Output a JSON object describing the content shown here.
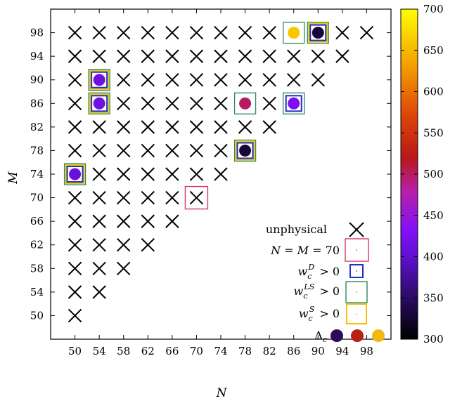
{
  "chart_data": {
    "type": "scatter",
    "xlabel": "N",
    "ylabel": "M",
    "xlim": [
      46,
      102
    ],
    "ylim": [
      46,
      102
    ],
    "x_ticks": [
      "50",
      "54",
      "58",
      "62",
      "66",
      "70",
      "74",
      "78",
      "82",
      "86",
      "90",
      "94",
      "98"
    ],
    "y_ticks": [
      "50",
      "54",
      "58",
      "62",
      "66",
      "70",
      "74",
      "78",
      "82",
      "86",
      "90",
      "94",
      "98"
    ],
    "grid": false,
    "unphysical_points": [
      [
        50,
        98
      ],
      [
        54,
        98
      ],
      [
        58,
        98
      ],
      [
        62,
        98
      ],
      [
        66,
        98
      ],
      [
        70,
        98
      ],
      [
        74,
        98
      ],
      [
        78,
        98
      ],
      [
        82,
        98
      ],
      [
        94,
        98
      ],
      [
        98,
        98
      ],
      [
        50,
        94
      ],
      [
        54,
        94
      ],
      [
        58,
        94
      ],
      [
        62,
        94
      ],
      [
        66,
        94
      ],
      [
        70,
        94
      ],
      [
        74,
        94
      ],
      [
        78,
        94
      ],
      [
        82,
        94
      ],
      [
        86,
        94
      ],
      [
        90,
        94
      ],
      [
        94,
        94
      ],
      [
        50,
        90
      ],
      [
        58,
        90
      ],
      [
        62,
        90
      ],
      [
        66,
        90
      ],
      [
        70,
        90
      ],
      [
        74,
        90
      ],
      [
        78,
        90
      ],
      [
        82,
        90
      ],
      [
        86,
        90
      ],
      [
        90,
        90
      ],
      [
        50,
        86
      ],
      [
        58,
        86
      ],
      [
        62,
        86
      ],
      [
        66,
        86
      ],
      [
        70,
        86
      ],
      [
        74,
        86
      ],
      [
        82,
        86
      ],
      [
        50,
        82
      ],
      [
        54,
        82
      ],
      [
        58,
        82
      ],
      [
        62,
        82
      ],
      [
        66,
        82
      ],
      [
        70,
        82
      ],
      [
        74,
        82
      ],
      [
        78,
        82
      ],
      [
        82,
        82
      ],
      [
        50,
        78
      ],
      [
        54,
        78
      ],
      [
        58,
        78
      ],
      [
        62,
        78
      ],
      [
        66,
        78
      ],
      [
        70,
        78
      ],
      [
        74,
        78
      ],
      [
        54,
        74
      ],
      [
        58,
        74
      ],
      [
        62,
        74
      ],
      [
        66,
        74
      ],
      [
        70,
        74
      ],
      [
        74,
        74
      ],
      [
        50,
        70
      ],
      [
        54,
        70
      ],
      [
        58,
        70
      ],
      [
        62,
        70
      ],
      [
        66,
        70
      ],
      [
        70,
        70
      ],
      [
        50,
        66
      ],
      [
        54,
        66
      ],
      [
        58,
        66
      ],
      [
        62,
        66
      ],
      [
        66,
        66
      ],
      [
        50,
        62
      ],
      [
        54,
        62
      ],
      [
        58,
        62
      ],
      [
        62,
        62
      ],
      [
        50,
        58
      ],
      [
        54,
        58
      ],
      [
        58,
        58
      ],
      [
        50,
        54
      ],
      [
        54,
        54
      ],
      [
        50,
        50
      ]
    ],
    "nm70_points": [
      [
        70,
        70
      ]
    ],
    "wD_points": [
      [
        54,
        90
      ],
      [
        54,
        86
      ],
      [
        78,
        78
      ],
      [
        86,
        86
      ],
      [
        50,
        74
      ],
      [
        90,
        98
      ]
    ],
    "wLS_points": [
      [
        54,
        90
      ],
      [
        54,
        86
      ],
      [
        78,
        78
      ],
      [
        78,
        86
      ],
      [
        86,
        86
      ],
      [
        86,
        98
      ],
      [
        50,
        74
      ],
      [
        90,
        98
      ]
    ],
    "wS_points": [
      [
        54,
        90
      ],
      [
        54,
        86
      ],
      [
        78,
        78
      ],
      [
        50,
        74
      ],
      [
        90,
        98
      ]
    ],
    "delta_c_points": [
      {
        "x": 54,
        "y": 90,
        "value": 415
      },
      {
        "x": 54,
        "y": 86,
        "value": 415
      },
      {
        "x": 78,
        "y": 86,
        "value": 500
      },
      {
        "x": 86,
        "y": 86,
        "value": 425
      },
      {
        "x": 78,
        "y": 78,
        "value": 330
      },
      {
        "x": 50,
        "y": 74,
        "value": 410
      },
      {
        "x": 86,
        "y": 98,
        "value": 660
      },
      {
        "x": 90,
        "y": 98,
        "value": 330
      }
    ],
    "colorbar": {
      "min": 300,
      "max": 700,
      "ticks": [
        "300",
        "350",
        "400",
        "450",
        "500",
        "550",
        "600",
        "650",
        "700"
      ]
    },
    "legend": {
      "placement": "bottom-right",
      "entries": [
        {
          "key": "unphysical",
          "label": "unphysical"
        },
        {
          "key": "nm70",
          "label": "N = M = 70"
        },
        {
          "key": "wD",
          "label": "w_c^D > 0"
        },
        {
          "key": "wLS",
          "label": "w_c^LS > 0"
        },
        {
          "key": "wS",
          "label": "w_c^S > 0"
        },
        {
          "key": "delta",
          "label": "Δ_c"
        }
      ]
    },
    "colors": {
      "nm70": "#d6356a",
      "wD": "#2230c8",
      "wLS": "#2e8b57",
      "wS": "#f2c40f",
      "marker": "#000000"
    }
  }
}
